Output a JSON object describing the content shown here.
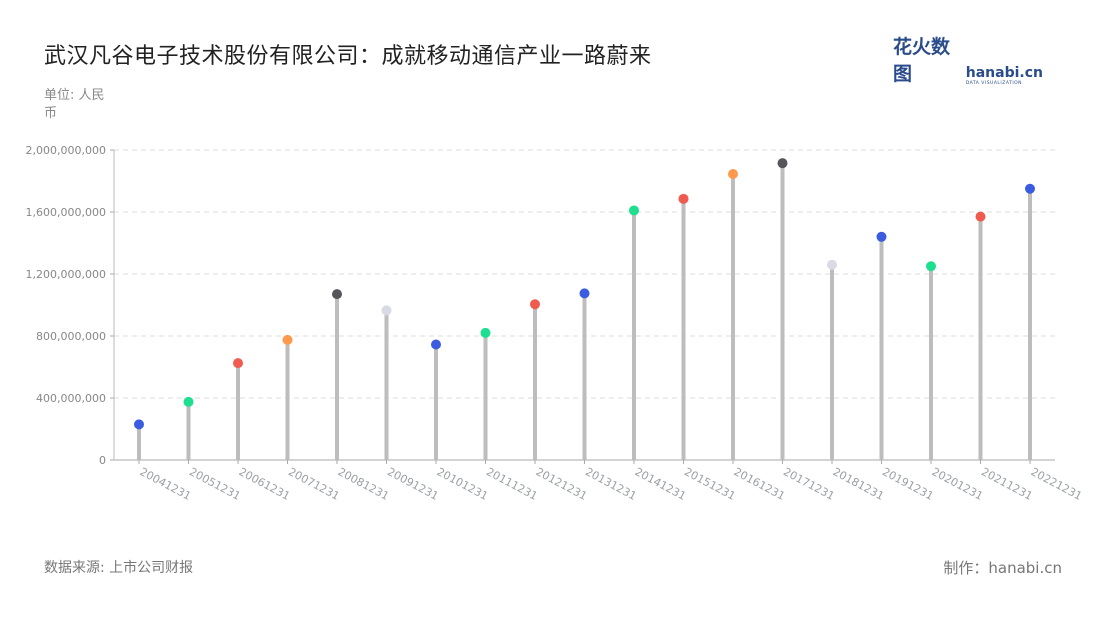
{
  "header": {
    "title": "武汉凡谷电子技术股份有限公司：成就移动通信产业一路蔚来",
    "unit": "单位: 人民币"
  },
  "logo": {
    "cn": "花火数图",
    "en": "hanabi.cn",
    "sub": "DATA VISUALIZATION"
  },
  "footer": {
    "source": "数据来源: 上市公司财报",
    "credit": "制作：hanabi.cn"
  },
  "colors": {
    "stem": "#bdbdbd",
    "grid": "#dddddd",
    "palette": [
      "#3b5be0",
      "#1ddf8f",
      "#f05a4f",
      "#ff9a4d",
      "#55565c",
      "#d9dbe4"
    ]
  },
  "chart_data": {
    "type": "lollipop",
    "categories": [
      "20041231",
      "20051231",
      "20061231",
      "20071231",
      "20081231",
      "20091231",
      "20101231",
      "20111231",
      "20121231",
      "20131231",
      "20141231",
      "20151231",
      "20161231",
      "20171231",
      "20181231",
      "20191231",
      "20201231",
      "20211231",
      "20221231"
    ],
    "values": [
      230000000,
      375000000,
      625000000,
      775000000,
      1070000000,
      965000000,
      745000000,
      820000000,
      1005000000,
      1075000000,
      1610000000,
      1685000000,
      1845000000,
      1915000000,
      1260000000,
      1440000000,
      1250000000,
      1570000000,
      1750000000
    ],
    "dot_colors": [
      "#3b5be0",
      "#1ddf8f",
      "#f05a4f",
      "#ff9a4d",
      "#55565c",
      "#d9dbe4",
      "#3b5be0",
      "#1ddf8f",
      "#f05a4f",
      "#3b5be0",
      "#1ddf8f",
      "#f05a4f",
      "#ff9a4d",
      "#55565c",
      "#d9dbe4",
      "#3b5be0",
      "#1ddf8f",
      "#f05a4f",
      "#3b5be0"
    ],
    "ylim": [
      0,
      2000000000
    ],
    "yticks": [
      0,
      400000000,
      800000000,
      1200000000,
      1600000000,
      2000000000
    ],
    "ytick_labels": [
      "0",
      "400,000,000",
      "800,000,000",
      "1,200,000,000",
      "1,600,000,000",
      "2,000,000,000"
    ],
    "grid": true
  }
}
